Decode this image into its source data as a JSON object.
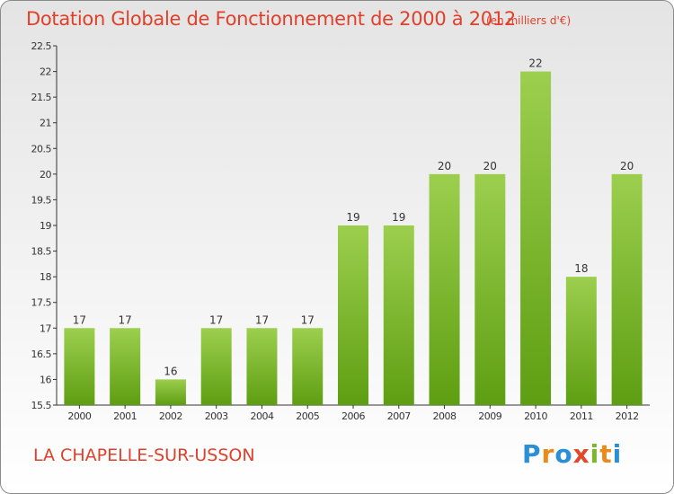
{
  "chart_data": {
    "type": "bar",
    "title": "Dotation Globale de Fonctionnement de 2000 à 2012",
    "subtitle": "(en milliers d'€)",
    "categories": [
      "2000",
      "2001",
      "2002",
      "2003",
      "2004",
      "2005",
      "2006",
      "2007",
      "2008",
      "2009",
      "2010",
      "2011",
      "2012"
    ],
    "values": [
      17,
      17,
      16,
      17,
      17,
      17,
      19,
      19,
      20,
      20,
      22,
      18,
      20
    ],
    "data_labels": [
      "17",
      "17",
      "16",
      "17",
      "17",
      "17",
      "19",
      "19",
      "20",
      "20",
      "22",
      "18",
      "20"
    ],
    "ylim": [
      15.5,
      22.5
    ],
    "yticks": [
      "15.5",
      "16",
      "16.5",
      "17",
      "17.5",
      "18",
      "18.5",
      "19",
      "19.5",
      "20",
      "20.5",
      "21",
      "21.5",
      "22",
      "22.5"
    ],
    "grid": false,
    "bar_color_top": "#9ccf4e",
    "bar_color_bottom": "#5e9e12"
  },
  "footer": {
    "commune": "LA CHAPELLE-SUR-USSON",
    "logo_text": "Proxiti"
  },
  "colors": {
    "title": "#e0402a",
    "axis": "#333333"
  }
}
